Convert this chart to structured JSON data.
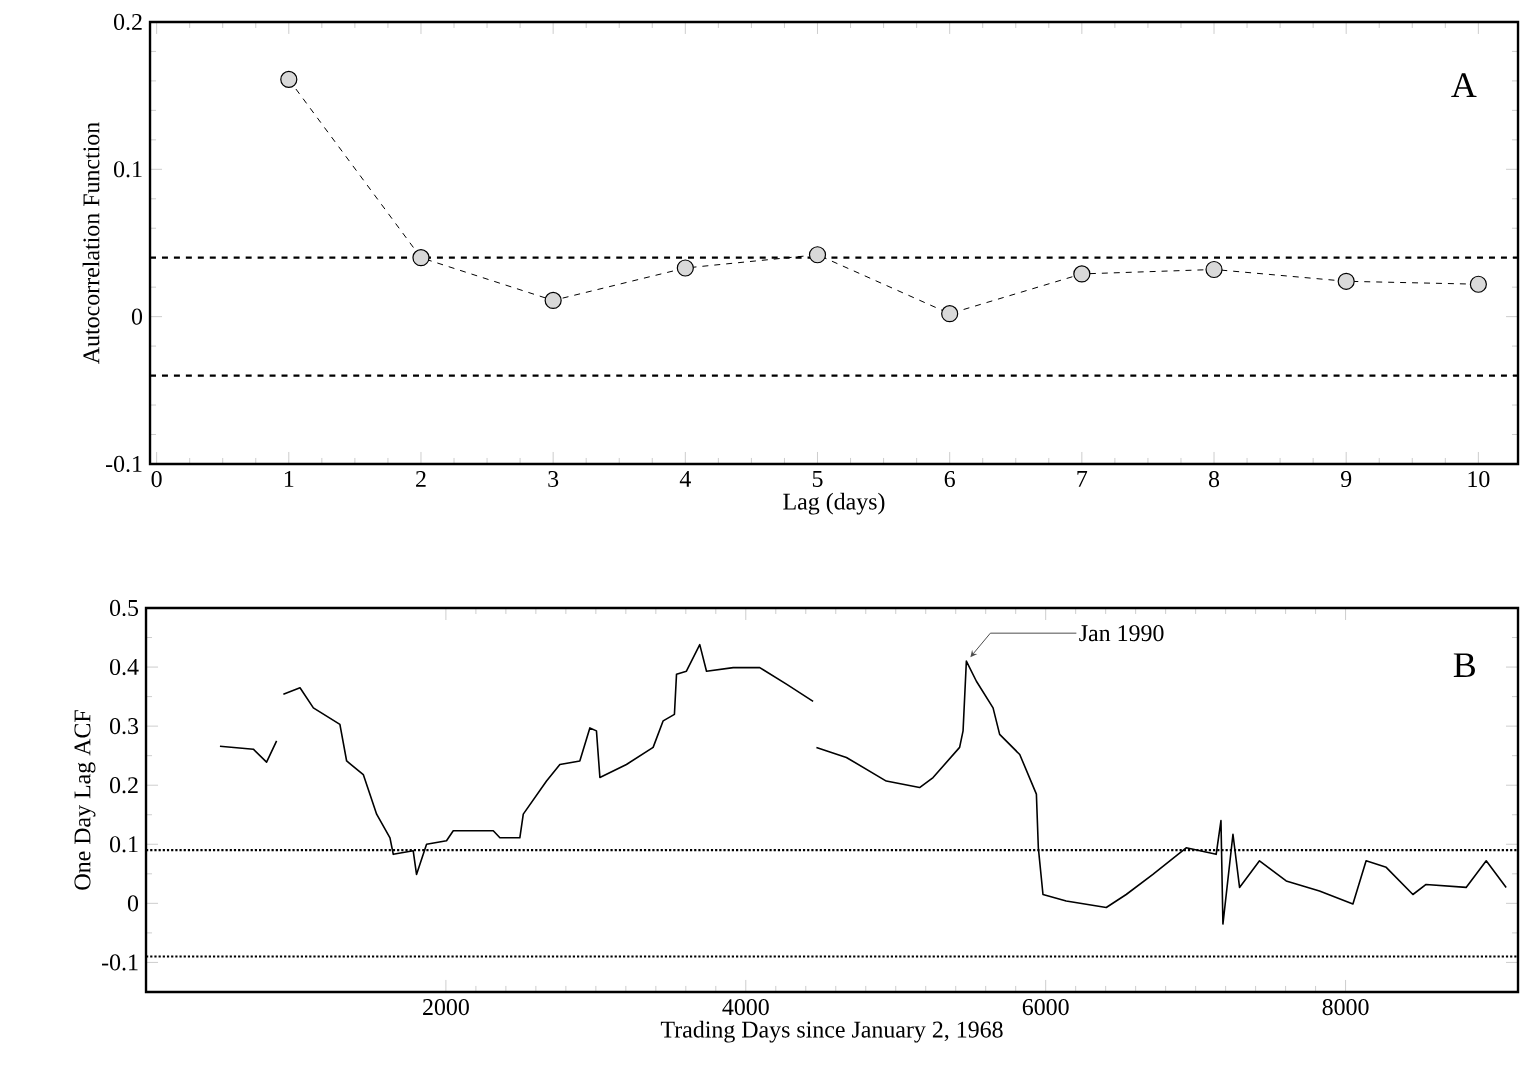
{
  "chart_data": [
    {
      "type": "line",
      "xlabel": "Lag (days)",
      "ylabel": "Autocorrelation Function",
      "x": [
        1,
        2,
        3,
        4,
        5,
        6,
        7,
        8,
        9,
        10
      ],
      "series": [
        {
          "color": "#000000",
          "values": [
            0.161,
            0.04,
            0.011,
            0.033,
            0.042,
            0.002,
            0.029,
            0.032,
            0.024,
            0.022
          ]
        }
      ],
      "xlim": [
        -0.05,
        10.3
      ],
      "xticks": [
        0,
        1,
        2,
        3,
        4,
        5,
        6,
        7,
        8,
        9,
        10
      ],
      "ylim": [
        -0.1,
        0.2
      ],
      "yticks": [
        -0.1,
        0,
        0.1,
        0.2
      ],
      "marker": "circle",
      "line_style": "dashed",
      "ref_lines": [
        {
          "axis": "y",
          "value": 0.04,
          "line_style": "dashed"
        },
        {
          "axis": "y",
          "value": -0.04,
          "line_style": "dashed"
        }
      ],
      "annotations": [
        "A"
      ]
    },
    {
      "type": "line",
      "xlabel": "Trading Days since January 2, 1968",
      "ylabel": "One Day Lag ACF",
      "x": [
        493,
        716,
        804,
        871,
        890,
        916,
        1027,
        1116,
        1293,
        1338,
        1449,
        1538,
        1627,
        1649,
        1782,
        1804,
        1871,
        2004,
        2049,
        2316,
        2360,
        2493,
        2516,
        2671,
        2760,
        2893,
        2960,
        3004,
        3027,
        3204,
        3382,
        3449,
        3524,
        3538,
        3604,
        3693,
        3738,
        3916,
        4093,
        4271,
        4449,
        4458,
        4471,
        4671,
        4937,
        5159,
        5249,
        5426,
        5449,
        5471,
        5538,
        5649,
        5693,
        5827,
        5938,
        5951,
        5982,
        6137,
        6404,
        6537,
        6715,
        6937,
        7137,
        7169,
        7182,
        7249,
        7293,
        7426,
        7604,
        7826,
        8049,
        8137,
        8271,
        8449,
        8537,
        8804,
        8938,
        9071
      ],
      "series": [
        {
          "color": "#000000",
          "values": [
            0.266,
            0.261,
            0.239,
            0.275,
            null,
            0.354,
            0.365,
            0.331,
            0.303,
            0.241,
            0.218,
            0.151,
            0.111,
            0.083,
            0.089,
            0.049,
            0.1,
            0.106,
            0.123,
            0.123,
            0.111,
            0.111,
            0.151,
            0.207,
            0.235,
            0.241,
            0.297,
            0.292,
            0.213,
            0.235,
            0.264,
            0.309,
            0.32,
            0.388,
            0.393,
            0.438,
            0.393,
            0.399,
            0.399,
            0.371,
            0.342,
            null,
            0.264,
            0.247,
            0.207,
            0.196,
            0.213,
            0.264,
            0.292,
            0.41,
            0.376,
            0.331,
            0.286,
            0.252,
            0.185,
            0.094,
            0.015,
            0.004,
            -0.007,
            0.015,
            0.049,
            0.094,
            0.083,
            0.14,
            -0.035,
            0.117,
            0.027,
            0.072,
            0.038,
            0.021,
            -0.001,
            0.072,
            0.061,
            0.015,
            0.032,
            0.027,
            0.072,
            0.027
          ]
        }
      ],
      "xlim": [
        0,
        9150
      ],
      "xticks": [
        2000,
        4000,
        6000,
        8000
      ],
      "ylim": [
        -0.15,
        0.5
      ],
      "yticks": [
        -0.1,
        0,
        0.1,
        0.2,
        0.3,
        0.4,
        0.5
      ],
      "marker": "none",
      "line_style": "solid",
      "ref_lines": [
        {
          "axis": "y",
          "value": 0.09,
          "line_style": "dotted"
        },
        {
          "axis": "y",
          "value": -0.09,
          "line_style": "dotted"
        }
      ],
      "annotations": [
        "B",
        {
          "text": "Jan 1990",
          "x": 5471,
          "y": 0.41
        }
      ]
    }
  ]
}
